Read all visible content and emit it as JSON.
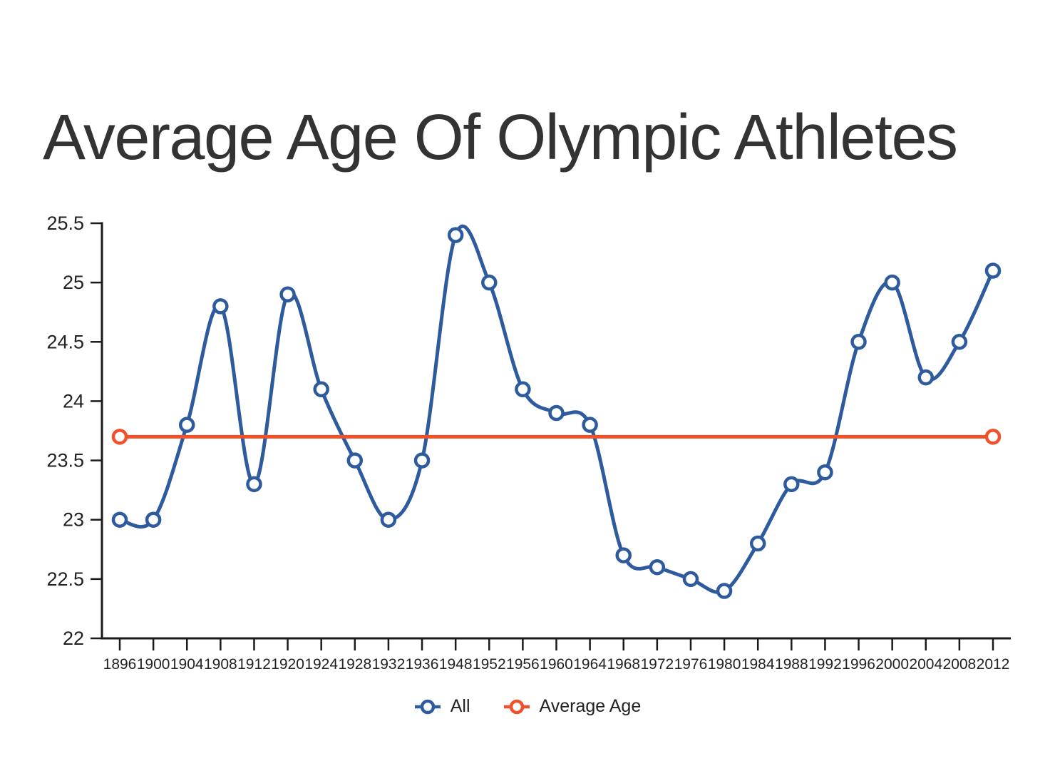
{
  "title": "Average Age Of Olympic Athletes",
  "legend": {
    "position": "bottom-center",
    "items": [
      {
        "label": "All",
        "color": "#2e5b9d",
        "marker": "open-circle-on-line"
      },
      {
        "label": "Average Age",
        "color": "#f0512b",
        "marker": "open-circle-on-line"
      }
    ]
  },
  "chart_data": {
    "type": "line",
    "title": "Average Age Of Olympic Athletes",
    "xlabel": "",
    "ylabel": "",
    "grid": false,
    "legend_position": "bottom-center",
    "axis_color": "#1a1a1a",
    "tick_label_color": "#222222",
    "marker_fill": "#ffffff",
    "ylim": [
      22,
      25.5
    ],
    "yticks": [
      22,
      22.5,
      23,
      23.5,
      24,
      24.5,
      25,
      25.5
    ],
    "categories": [
      "1896",
      "1900",
      "1904",
      "1908",
      "1912",
      "1920",
      "1924",
      "1928",
      "1932",
      "1936",
      "1948",
      "1952",
      "1956",
      "1960",
      "1964",
      "1968",
      "1972",
      "1976",
      "1980",
      "1984",
      "1988",
      "1992",
      "1996",
      "2000",
      "2004",
      "2008",
      "2012"
    ],
    "series": [
      {
        "name": "All",
        "color": "#2e5b9d",
        "line_shape": "spline",
        "markers": "all",
        "values": [
          23,
          23,
          23.8,
          24.8,
          23.3,
          24.9,
          24.1,
          23.5,
          23,
          23.5,
          25.4,
          25,
          24.1,
          23.9,
          23.8,
          22.7,
          22.6,
          22.5,
          22.4,
          22.8,
          23.3,
          23.4,
          24.5,
          25,
          24.2,
          24.5,
          25.1
        ]
      },
      {
        "name": "Average Age",
        "color": "#f0512b",
        "line_shape": "linear",
        "markers": "endpoints",
        "constant_value": 23.7
      }
    ]
  }
}
